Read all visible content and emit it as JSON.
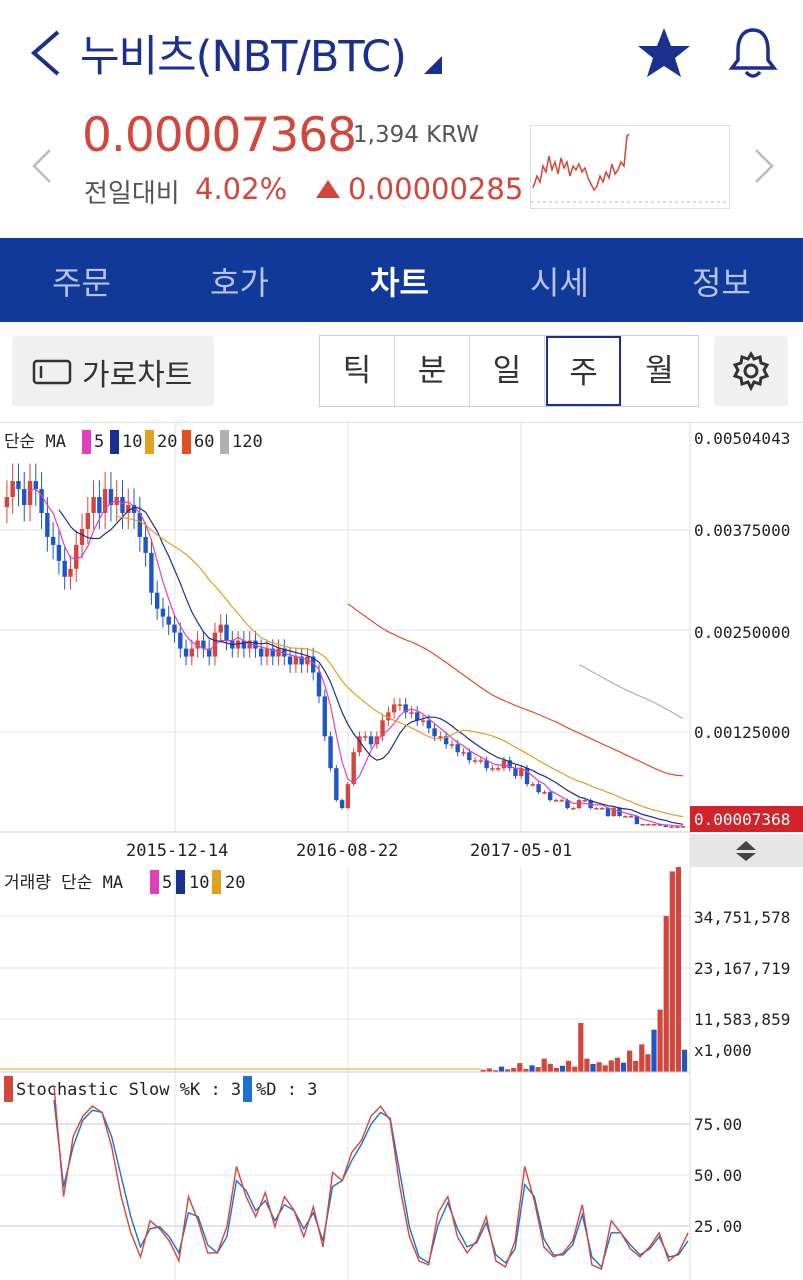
{
  "header": {
    "title": "누비츠(NBT/BTC)",
    "icons": [
      "back-icon",
      "dropdown-caret-icon",
      "star-icon",
      "bell-icon"
    ]
  },
  "price": {
    "current": "0.00007368",
    "krw": "1,394 KRW",
    "change_label": "전일대비",
    "change_pct": "4.02%",
    "change_abs": "0.00000285",
    "direction": "up"
  },
  "tabs": [
    {
      "label": "주문",
      "active": false
    },
    {
      "label": "호가",
      "active": false
    },
    {
      "label": "차트",
      "active": true
    },
    {
      "label": "시세",
      "active": false
    },
    {
      "label": "정보",
      "active": false
    }
  ],
  "toolbar": {
    "landscape_label": "가로차트",
    "periods": [
      {
        "label": "틱",
        "active": false
      },
      {
        "label": "분",
        "active": false
      },
      {
        "label": "일",
        "active": false
      },
      {
        "label": "주",
        "active": true
      },
      {
        "label": "월",
        "active": false
      }
    ]
  },
  "colors": {
    "brand": "#11399a",
    "up": "#d2463b",
    "down": "#1f55c4",
    "ma5": "#e040c0",
    "ma10": "#1b2f8f",
    "ma20": "#e0a020",
    "ma60": "#e05020",
    "ma120": "#b0b0b0"
  },
  "chart_data": [
    {
      "type": "candlestick",
      "panel": "price",
      "legend": {
        "prefix": "단순 MA",
        "items": [
          "5",
          "10",
          "20",
          "60",
          "120"
        ]
      },
      "y_ticks": [
        "0.00504043",
        "0.00375000",
        "0.00250000",
        "0.00125000"
      ],
      "last_price_label": "0.00007368",
      "x_ticks": [
        "2015-12-14",
        "2016-08-22",
        "2017-05-01"
      ],
      "ylim": [
        0,
        0.00504043
      ],
      "closes": [
        0.0042,
        0.0044,
        0.0043,
        0.0041,
        0.0044,
        0.0043,
        0.004,
        0.0037,
        0.0036,
        0.0034,
        0.0032,
        0.0033,
        0.0036,
        0.0038,
        0.004,
        0.0042,
        0.004,
        0.0043,
        0.0041,
        0.0042,
        0.004,
        0.0041,
        0.004,
        0.0037,
        0.0035,
        0.003,
        0.0028,
        0.0027,
        0.0026,
        0.0025,
        0.0023,
        0.0022,
        0.0023,
        0.0024,
        0.0023,
        0.0022,
        0.0025,
        0.0026,
        0.0024,
        0.0023,
        0.0024,
        0.0023,
        0.0024,
        0.0023,
        0.0022,
        0.0023,
        0.0022,
        0.0023,
        0.0022,
        0.0021,
        0.0022,
        0.0021,
        0.0022,
        0.002,
        0.0017,
        0.0012,
        0.0008,
        0.0004,
        0.0003,
        0.0006,
        0.001,
        0.0012,
        0.0012,
        0.0011,
        0.0012,
        0.0014,
        0.0015,
        0.0016,
        0.0016,
        0.0015,
        0.0015,
        0.0014,
        0.0014,
        0.0013,
        0.0012,
        0.0012,
        0.0011,
        0.0011,
        0.001,
        0.001,
        0.0009,
        0.0009,
        0.0009,
        0.0008,
        0.0008,
        0.0008,
        0.0009,
        0.0008,
        0.0007,
        0.0008,
        0.0006,
        0.0006,
        0.0005,
        0.0005,
        0.0004,
        0.0004,
        0.0004,
        0.0003,
        0.0003,
        0.0004,
        0.0004,
        0.0003,
        0.0003,
        0.0003,
        0.0002,
        0.0003,
        0.0002,
        0.0002,
        0.0002,
        0.0001,
        0.0001,
        0.0001,
        0.0001,
        8e-05,
        7e-05,
        7e-05,
        7e-05,
        7.368e-05
      ]
    },
    {
      "type": "bar",
      "panel": "volume",
      "legend": {
        "prefix": "거래량 단순 MA",
        "items": [
          "5",
          "10",
          "20"
        ]
      },
      "y_ticks": [
        "34,751,578",
        "23,167,719",
        "11,583,859"
      ],
      "unit_label": "x1,000",
      "ylim": [
        0,
        46000000
      ],
      "recent_values": [
        500000,
        800000,
        400000,
        1200000,
        600000,
        900000,
        2000000,
        700000,
        1500000,
        1100000,
        3000000,
        1800000,
        900000,
        1400000,
        2500000,
        1200000,
        11000000,
        3000000,
        1800000,
        2200000,
        1500000,
        2600000,
        3200000,
        2100000,
        4800000,
        2500000,
        6200000,
        4000000,
        9500000,
        14000000,
        35000000,
        45000000,
        46000000,
        5000000
      ]
    },
    {
      "type": "line",
      "panel": "stochastic",
      "legend": {
        "items": [
          "Stochastic Slow %K : 3",
          "%D : 3"
        ]
      },
      "y_ticks": [
        "75.00",
        "50.00",
        "25.00"
      ],
      "ylim": [
        0,
        100
      ],
      "k": [
        95,
        40,
        70,
        80,
        85,
        82,
        65,
        40,
        22,
        10,
        28,
        24,
        18,
        8,
        40,
        28,
        12,
        12,
        25,
        55,
        40,
        30,
        42,
        25,
        40,
        33,
        20,
        35,
        15,
        52,
        48,
        62,
        68,
        80,
        85,
        78,
        45,
        20,
        8,
        6,
        32,
        40,
        20,
        12,
        18,
        30,
        8,
        5,
        18,
        55,
        38,
        15,
        10,
        12,
        18,
        36,
        6,
        4,
        28,
        22,
        14,
        10,
        15,
        22,
        8,
        12,
        22
      ],
      "d": [
        88,
        45,
        65,
        78,
        83,
        82,
        70,
        50,
        30,
        15,
        24,
        25,
        20,
        12,
        32,
        30,
        16,
        12,
        20,
        48,
        43,
        33,
        38,
        28,
        36,
        33,
        24,
        32,
        18,
        45,
        48,
        58,
        66,
        76,
        82,
        79,
        52,
        25,
        10,
        7,
        26,
        37,
        24,
        15,
        17,
        27,
        11,
        7,
        14,
        46,
        40,
        19,
        11,
        11,
        16,
        31,
        10,
        5,
        22,
        22,
        16,
        11,
        14,
        20,
        10,
        11,
        18
      ]
    }
  ]
}
